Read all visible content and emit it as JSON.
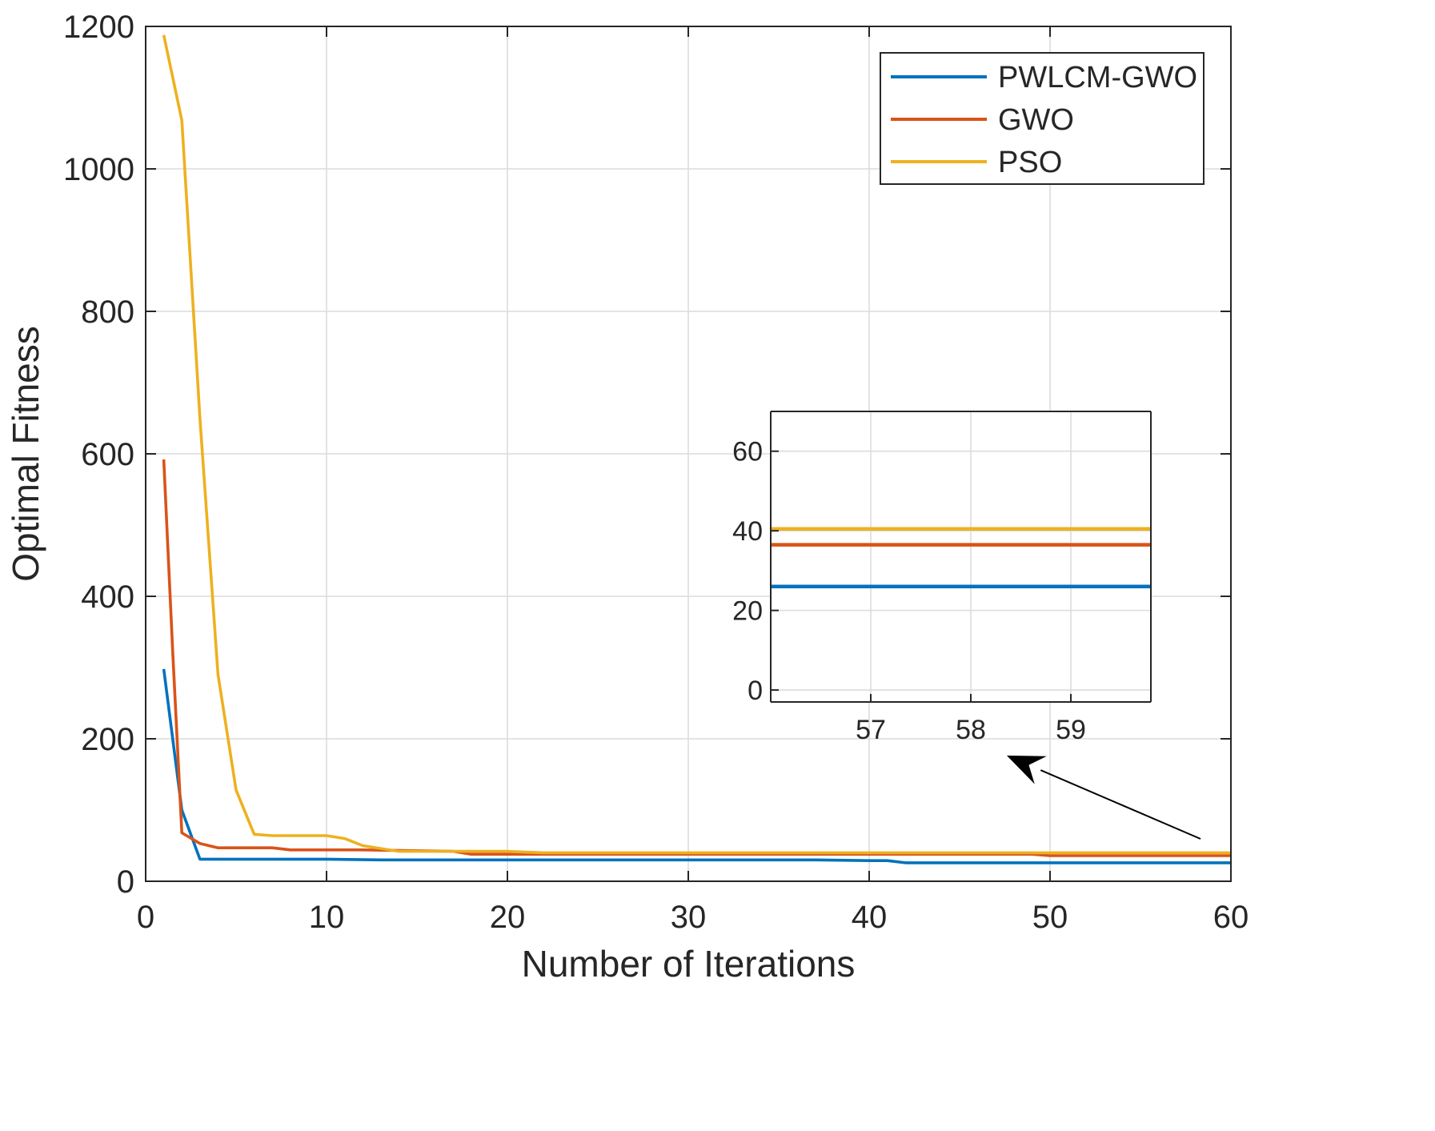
{
  "chart_data": {
    "type": "line",
    "title": "",
    "xlabel": "Number of Iterations",
    "ylabel": "Optimal Fitness",
    "xlim": [
      0,
      60
    ],
    "ylim": [
      0,
      1200
    ],
    "xticks": [
      "0",
      "10",
      "20",
      "30",
      "40",
      "50",
      "60"
    ],
    "yticks": [
      "0",
      "200",
      "400",
      "600",
      "800",
      "1000",
      "1200"
    ],
    "grid": true,
    "legend_position": "top-right",
    "series": [
      {
        "name": "PWLCM-GWO",
        "color": "#0072BD",
        "x": [
          1,
          2,
          3,
          5,
          10,
          13,
          20,
          30,
          37,
          40,
          41,
          42,
          50,
          60
        ],
        "y": [
          298,
          100,
          31,
          31,
          31,
          30,
          30,
          30,
          30,
          29,
          29,
          26,
          26,
          26
        ]
      },
      {
        "name": "GWO",
        "color": "#D95319",
        "x": [
          1,
          1.5,
          2,
          3,
          4,
          7,
          8,
          12,
          17,
          18,
          30,
          49,
          50,
          60
        ],
        "y": [
          592,
          320,
          68,
          53,
          47,
          47,
          44,
          44,
          42,
          38,
          38,
          38,
          36,
          36
        ]
      },
      {
        "name": "PSO",
        "color": "#EDB120",
        "x": [
          1,
          2,
          3,
          4,
          5,
          6,
          7,
          10,
          11,
          12,
          13,
          14,
          20,
          22,
          30,
          40,
          50,
          60
        ],
        "y": [
          1188,
          1068,
          650,
          290,
          128,
          66,
          64,
          64,
          60,
          50,
          46,
          42,
          42,
          40,
          40,
          40,
          40,
          40
        ]
      }
    ],
    "inset": {
      "xlim": [
        56,
        59.8
      ],
      "ylim": [
        -3,
        70
      ],
      "xticks": [
        "57",
        "58",
        "59"
      ],
      "yticks": [
        "0",
        "20",
        "40",
        "60"
      ],
      "grid": true,
      "series_levels": [
        {
          "name": "PWLCM-GWO",
          "y": 26
        },
        {
          "name": "GWO",
          "y": 36.5
        },
        {
          "name": "PSO",
          "y": 40.5
        }
      ]
    },
    "annotation": "arrow pointing from the end of the curves at iteration 60 to the zoomed inset"
  }
}
